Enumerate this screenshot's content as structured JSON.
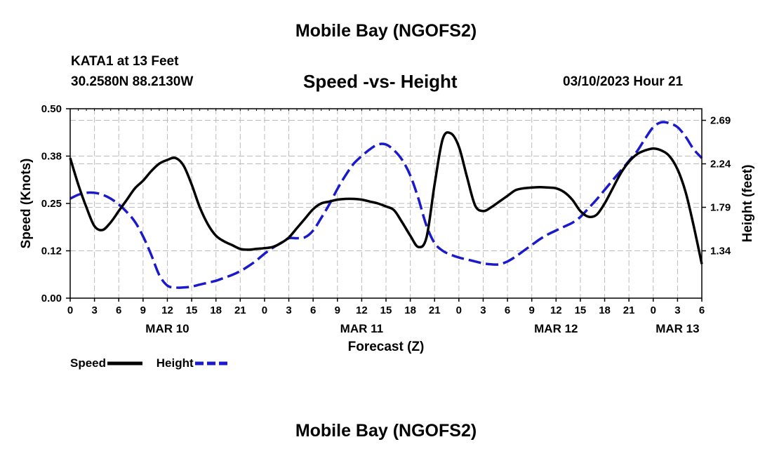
{
  "page": {
    "title": "Mobile Bay (NGOFS2)",
    "bottom_title": "Mobile Bay (NGOFS2)",
    "station": "KATA1 at 13 Feet",
    "coordinates": "30.2580N  88.2130W",
    "subtitle": "Speed -vs- Height",
    "datetime": "03/10/2023 Hour 21"
  },
  "colors": {
    "speed": "#000000",
    "height": "#1a1acc",
    "grid": "#bbbbbb"
  },
  "chart_data": {
    "type": "line",
    "title": "Speed -vs- Height",
    "xlabel": "Forecast (Z)",
    "ylabel": "Speed (Knots)",
    "y2label": "Height (feet)",
    "xlim": [
      0,
      78
    ],
    "ylim": [
      0,
      0.5
    ],
    "y2lim": [
      0.85,
      2.81
    ],
    "x_ticks": [
      0,
      3,
      6,
      9,
      12,
      15,
      18,
      21,
      24,
      27,
      30,
      33,
      36,
      39,
      42,
      45,
      48,
      51,
      54,
      57,
      60,
      63,
      66,
      69,
      72,
      75,
      78
    ],
    "x_tick_labels": [
      "0",
      "3",
      "6",
      "9",
      "12",
      "15",
      "18",
      "21",
      "0",
      "3",
      "6",
      "9",
      "12",
      "15",
      "18",
      "21",
      "0",
      "3",
      "6",
      "9",
      "12",
      "15",
      "18",
      "21",
      "0",
      "3",
      "6"
    ],
    "y_ticks": [
      0.0,
      0.125,
      0.25,
      0.375,
      0.5
    ],
    "y_tick_labels": [
      "0.00",
      "0.12",
      "0.25",
      "0.38",
      "0.50"
    ],
    "y2_ticks": [
      1.34,
      1.79,
      2.24,
      2.69
    ],
    "y2_tick_labels": [
      "1.34",
      "1.79",
      "2.24",
      "2.69"
    ],
    "date_labels": [
      {
        "x": 12,
        "label": "MAR 10"
      },
      {
        "x": 36,
        "label": "MAR 11"
      },
      {
        "x": 60,
        "label": "MAR 12"
      },
      {
        "x": 75,
        "label": "MAR 13"
      }
    ],
    "grid": true,
    "legend": [
      {
        "name": "Speed",
        "style": "solid"
      },
      {
        "name": "Height",
        "style": "dashed"
      }
    ],
    "series": [
      {
        "name": "Speed",
        "axis": "left",
        "style": "solid",
        "x": [
          0,
          1,
          2,
          3,
          4,
          5,
          6,
          7,
          8,
          9,
          10,
          11,
          12,
          13,
          14,
          15,
          16,
          17,
          18,
          19,
          20,
          21,
          22,
          23,
          24,
          25,
          26,
          27,
          28,
          29,
          30,
          31,
          32,
          33,
          34,
          35,
          36,
          37,
          38,
          39,
          40,
          41,
          42,
          43,
          44,
          45,
          46,
          47,
          48,
          49,
          50,
          51,
          52,
          53,
          54,
          55,
          56,
          57,
          58,
          59,
          60,
          61,
          62,
          63,
          64,
          65,
          66,
          67,
          68,
          69,
          70,
          71,
          72,
          73,
          74,
          75,
          76,
          77,
          78
        ],
        "values": [
          0.37,
          0.3,
          0.24,
          0.19,
          0.18,
          0.2,
          0.23,
          0.26,
          0.29,
          0.31,
          0.335,
          0.355,
          0.365,
          0.37,
          0.35,
          0.3,
          0.24,
          0.195,
          0.165,
          0.15,
          0.14,
          0.13,
          0.128,
          0.13,
          0.132,
          0.135,
          0.145,
          0.16,
          0.185,
          0.21,
          0.235,
          0.25,
          0.255,
          0.26,
          0.262,
          0.262,
          0.26,
          0.255,
          0.25,
          0.242,
          0.232,
          0.2,
          0.165,
          0.135,
          0.16,
          0.3,
          0.42,
          0.435,
          0.4,
          0.32,
          0.245,
          0.23,
          0.24,
          0.255,
          0.27,
          0.285,
          0.29,
          0.292,
          0.293,
          0.292,
          0.29,
          0.28,
          0.26,
          0.23,
          0.215,
          0.22,
          0.25,
          0.29,
          0.33,
          0.36,
          0.38,
          0.39,
          0.395,
          0.39,
          0.375,
          0.34,
          0.28,
          0.19,
          0.09
        ]
      },
      {
        "name": "Height",
        "axis": "right",
        "style": "dashed",
        "x": [
          0,
          1,
          2,
          3,
          4,
          5,
          6,
          7,
          8,
          9,
          10,
          11,
          12,
          13,
          14,
          15,
          16,
          17,
          18,
          19,
          20,
          21,
          22,
          23,
          24,
          25,
          26,
          27,
          28,
          29,
          30,
          31,
          32,
          33,
          34,
          35,
          36,
          37,
          38,
          39,
          40,
          41,
          42,
          43,
          44,
          45,
          46,
          47,
          48,
          49,
          50,
          51,
          52,
          53,
          54,
          55,
          56,
          57,
          58,
          59,
          60,
          61,
          62,
          63,
          64,
          65,
          66,
          67,
          68,
          69,
          70,
          71,
          72,
          73,
          74,
          75,
          76,
          77,
          78
        ],
        "values": [
          1.88,
          1.92,
          1.94,
          1.94,
          1.92,
          1.88,
          1.82,
          1.74,
          1.64,
          1.49,
          1.3,
          1.09,
          0.98,
          0.96,
          0.96,
          0.97,
          0.99,
          1.01,
          1.03,
          1.06,
          1.09,
          1.13,
          1.18,
          1.24,
          1.31,
          1.37,
          1.42,
          1.47,
          1.47,
          1.48,
          1.55,
          1.68,
          1.82,
          1.98,
          2.12,
          2.24,
          2.32,
          2.39,
          2.44,
          2.44,
          2.38,
          2.28,
          2.12,
          1.88,
          1.6,
          1.42,
          1.34,
          1.3,
          1.27,
          1.25,
          1.23,
          1.21,
          1.2,
          1.2,
          1.23,
          1.28,
          1.34,
          1.4,
          1.46,
          1.51,
          1.55,
          1.59,
          1.63,
          1.69,
          1.78,
          1.87,
          1.97,
          2.07,
          2.17,
          2.27,
          2.37,
          2.5,
          2.62,
          2.67,
          2.66,
          2.62,
          2.52,
          2.39,
          2.3
        ]
      }
    ]
  }
}
